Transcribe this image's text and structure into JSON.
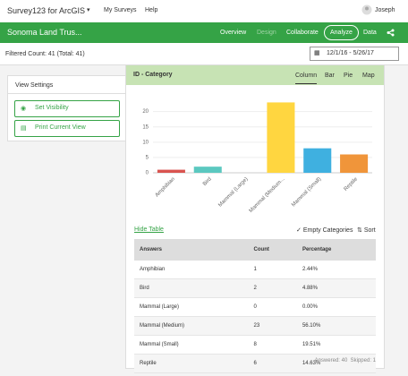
{
  "header": {
    "app_title": "Survey123 for ArcGIS",
    "nav": [
      "My Surveys",
      "Help"
    ],
    "user": "Joseph"
  },
  "survey_bar": {
    "name": "Sonoma Land Trus...",
    "tabs": [
      "Overview",
      "Design",
      "Collaborate",
      "Analyze",
      "Data"
    ]
  },
  "filter": {
    "count": "Filtered Count: 41 (Total: 41)",
    "date_range": "12/1/16 - 5/26/17"
  },
  "view_settings": {
    "title": "View Settings",
    "buttons": [
      "Set Visibility",
      "Print Current View"
    ]
  },
  "card": {
    "title": "ID - Category",
    "chart_tabs": [
      "Column",
      "Bar",
      "Pie",
      "Map"
    ],
    "chart_data": {
      "type": "bar",
      "categories": [
        "Amphibian",
        "Bird",
        "Mammal (Large)",
        "Mammal (Medium...",
        "Mammal (Small)",
        "Reptile"
      ],
      "values": [
        1,
        2,
        0,
        23,
        8,
        6
      ],
      "colors": [
        "#d9534f",
        "#5bc8c0",
        "#8cc152",
        "#ffd640",
        "#3fb0e0",
        "#f0953a"
      ],
      "ylim": [
        0,
        24
      ],
      "yticks": [
        0,
        5,
        10,
        15,
        20
      ],
      "grid": true
    },
    "hide_table": "Hide Table",
    "empty_categories": "Empty Categories",
    "sort": "Sort",
    "table": {
      "columns": [
        "Answers",
        "Count",
        "Percentage"
      ],
      "rows": [
        [
          "Amphibian",
          "1",
          "2.44%"
        ],
        [
          "Bird",
          "2",
          "4.88%"
        ],
        [
          "Mammal (Large)",
          "0",
          "0.00%"
        ],
        [
          "Mammal (Medium)",
          "23",
          "56.10%"
        ],
        [
          "Mammal (Small)",
          "8",
          "19.51%"
        ],
        [
          "Reptile",
          "6",
          "14.63%"
        ]
      ]
    },
    "footer": "Answered: 40  Skipped: 1"
  }
}
